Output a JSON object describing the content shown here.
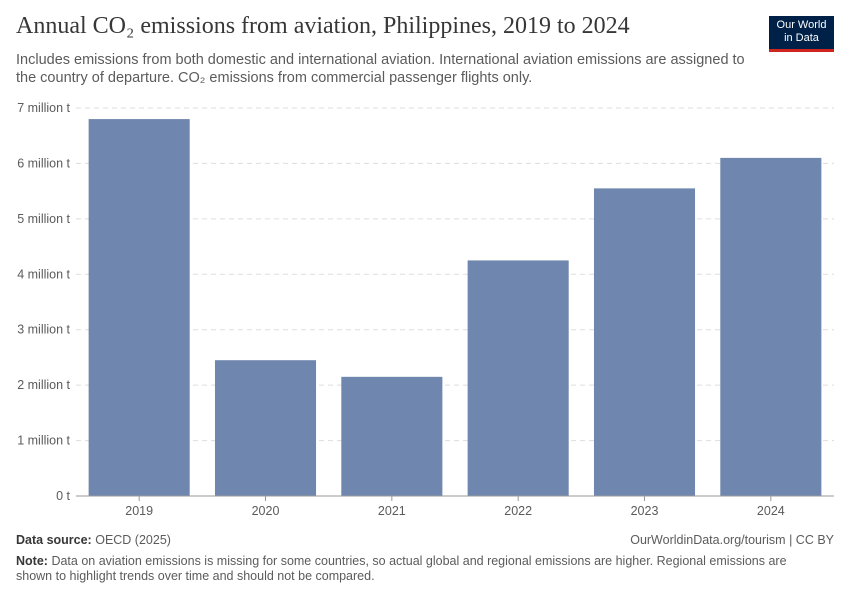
{
  "header": {
    "title": "Annual CO₂ emissions from aviation, Philippines, 2019 to 2024",
    "subtitle": "Includes emissions from both domestic and international aviation. International aviation emissions are assigned to the country of departure. CO₂ emissions from commercial passenger flights only.",
    "logo_line1": "Our World",
    "logo_line2": "in Data"
  },
  "colors": {
    "bar": "#6f87ae",
    "grid": "#dddddd",
    "axis": "#999999",
    "logo_bg": "#002147",
    "logo_accent": "#ce261e"
  },
  "chart_data": {
    "type": "bar",
    "title": "Annual CO₂ emissions from aviation, Philippines, 2019 to 2024",
    "xlabel": "",
    "ylabel": "",
    "categories": [
      "2019",
      "2020",
      "2021",
      "2022",
      "2023",
      "2024"
    ],
    "values": [
      6800000,
      2450000,
      2150000,
      4250000,
      5550000,
      6100000
    ],
    "ylim": [
      0,
      7000000
    ],
    "yticks": [
      0,
      1000000,
      2000000,
      3000000,
      4000000,
      5000000,
      6000000,
      7000000
    ],
    "ytick_labels": [
      "0 t",
      "1 million t",
      "2 million t",
      "3 million t",
      "4 million t",
      "5 million t",
      "6 million t",
      "7 million t"
    ],
    "grid": true,
    "legend": "none"
  },
  "footer": {
    "source_label": "Data source:",
    "source_value": "OECD (2025)",
    "credit": "OurWorldinData.org/tourism | CC BY",
    "note_label": "Note:",
    "note_text": "Data on aviation emissions is missing for some countries, so actual global and regional emissions are higher. Regional emissions are shown to highlight trends over time and should not be compared."
  }
}
